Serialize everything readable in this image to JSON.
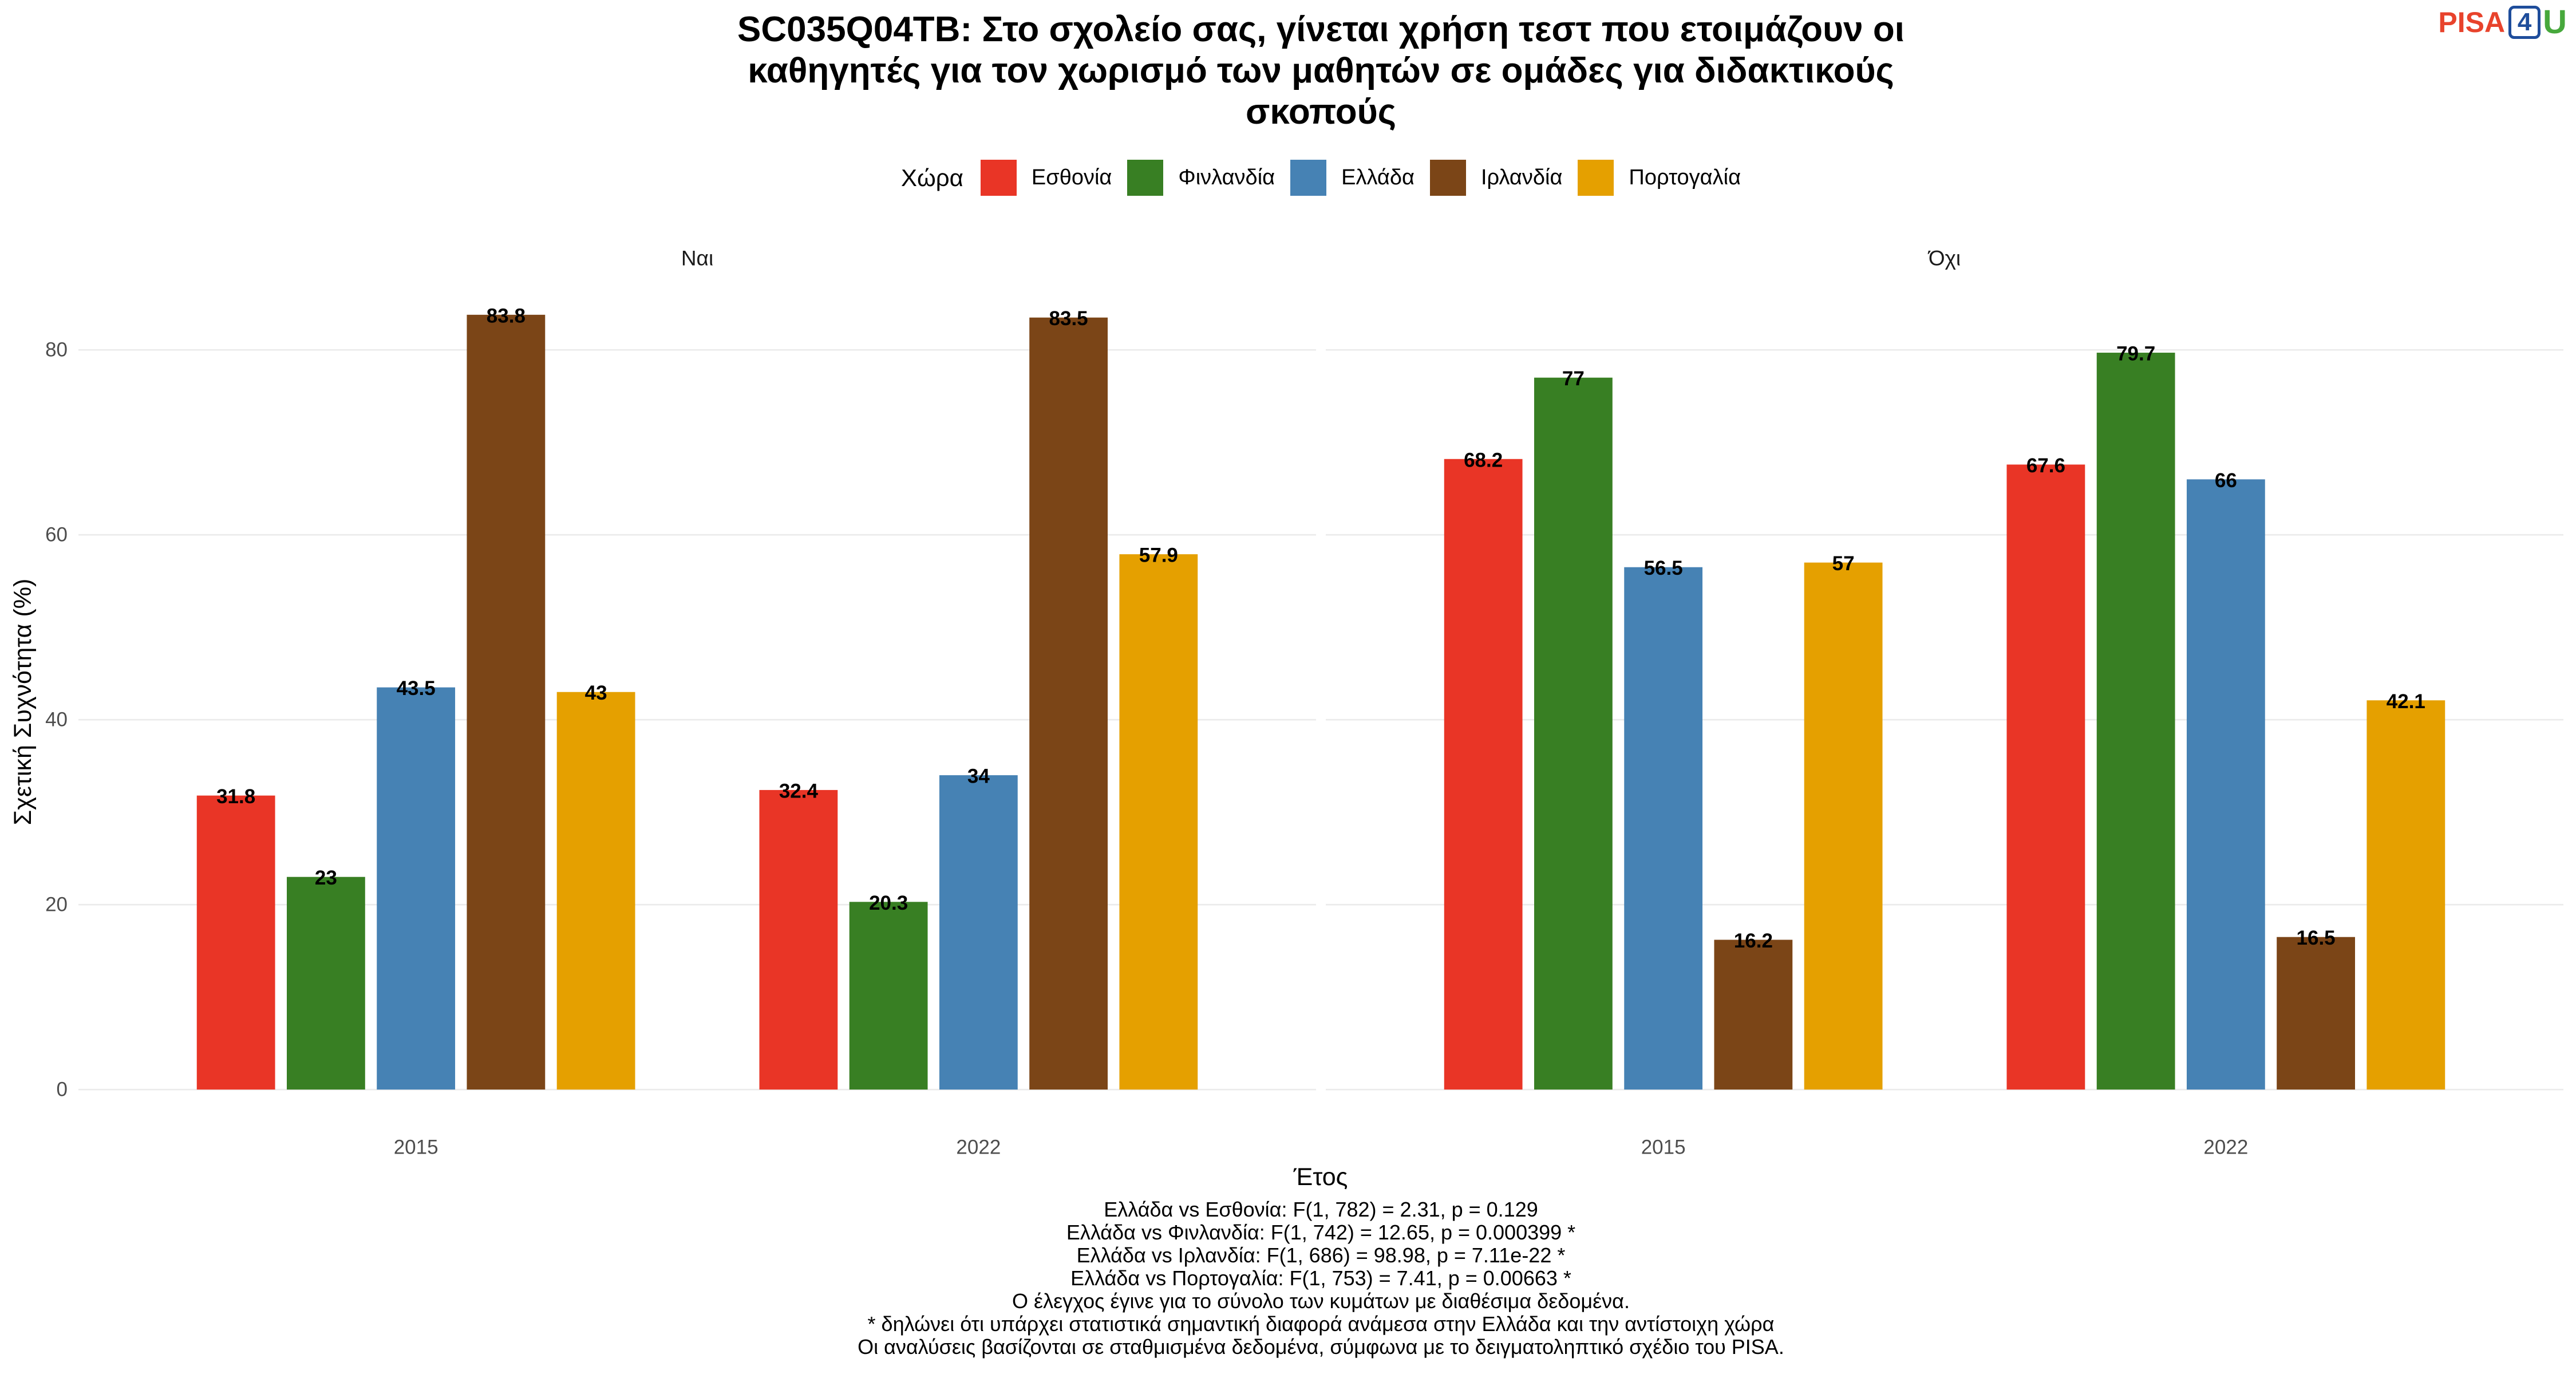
{
  "logo": {
    "text_a": "PISA",
    "text_b": "4",
    "text_c": "U"
  },
  "chart_data": {
    "type": "bar",
    "title_lines": [
      "SC035Q04TB: Στο σχολείο σας, γίνεται χρήση τεστ που ετοιμάζουν οι",
      "καθηγητές για τον χωρισμό των μαθητών σε ομάδες για διδακτικούς",
      "σκοπούς"
    ],
    "legend_title": "Χώρα",
    "legend_position": "top",
    "facets": [
      "Ναι",
      "Όχι"
    ],
    "categories": [
      "2015",
      "2022"
    ],
    "xlabel": "Έτος",
    "ylabel": "Σχετική Συχνότητα (%)",
    "ylim": [
      -4.2,
      88
    ],
    "yticks": [
      0,
      20,
      40,
      60,
      80
    ],
    "grid": true,
    "series": [
      {
        "name": "Εσθονία",
        "color": "#E93526",
        "values": [
          [
            31.8,
            32.4
          ],
          [
            68.2,
            67.6
          ]
        ]
      },
      {
        "name": "Φινλανδία",
        "color": "#387F23",
        "values": [
          [
            23,
            20.3
          ],
          [
            77,
            79.7
          ]
        ]
      },
      {
        "name": "Ελλάδα",
        "color": "#4682B4",
        "values": [
          [
            43.5,
            34
          ],
          [
            56.5,
            66
          ]
        ]
      },
      {
        "name": "Ιρλανδία",
        "color": "#7B4517",
        "values": [
          [
            83.8,
            83.5
          ],
          [
            16.2,
            16.5
          ]
        ]
      },
      {
        "name": "Πορτογαλία",
        "color": "#E5A000",
        "values": [
          [
            43,
            57.9
          ],
          [
            57,
            42.1
          ]
        ]
      }
    ],
    "caption_lines": [
      "Ελλάδα vs Εσθονία: F(1, 782) = 2.31, p = 0.129",
      "Ελλάδα vs Φινλανδία: F(1, 742) = 12.65, p = 0.000399 *",
      "Ελλάδα vs Ιρλανδία: F(1, 686) = 98.98, p = 7.11e-22 *",
      "Ελλάδα vs Πορτογαλία: F(1, 753) = 7.41, p = 0.00663 *",
      "Ο έλεγχος έγινε για το σύνολο των κυμάτων με διαθέσιμα δεδομένα.",
      "* δηλώνει ότι υπάρχει στατιστικά σημαντική διαφορά ανάμεσα στην Ελλάδα και την αντίστοιχη χώρα",
      "Οι αναλύσεις βασίζονται σε σταθμισμένα δεδομένα, σύμφωνα με το δειγματοληπτικό σχέδιο του PISA."
    ]
  }
}
